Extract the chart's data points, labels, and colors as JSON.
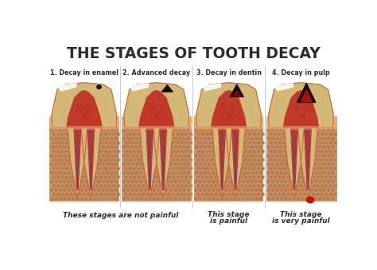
{
  "title": "THE STAGES OF TOOTH DECAY",
  "title_color": "#2d2d2d",
  "bg_color": "#ffffff",
  "stage_labels": [
    "1. Decay in enamel",
    "2. Advanced decay",
    "3. Decay in dentin",
    "4. Decay in pulp"
  ],
  "gum_color": "#d4956a",
  "bone_color": "#c8956a",
  "bone_dot_color": "#b87c50",
  "tooth_enamel": "#e8e4d8",
  "tooth_white": "#f0ede0",
  "tooth_dentin": "#d4b878",
  "pulp_red": "#c0392b",
  "pulp_dark": "#a02020",
  "decay_black": "#1a0a00",
  "nerve_blue": "#3050a0",
  "root_outline": "#c8643c",
  "gum_line_color": "#e8a878",
  "enamel_highlight": "#ffffff"
}
